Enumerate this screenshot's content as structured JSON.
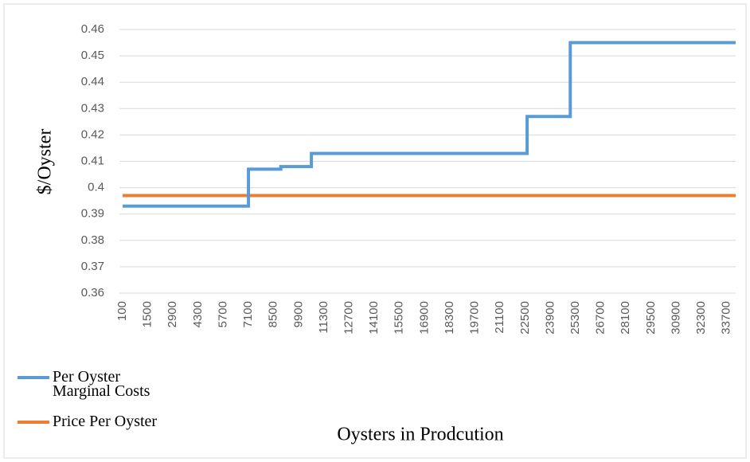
{
  "chart_data": {
    "type": "line",
    "x_label": "Oysters in Prodcution",
    "y_label": "$/Oyster",
    "series": [
      {
        "name": "Per Oyster Marginal Costs",
        "color": "#5b9bd5",
        "x": [
          100,
          7100,
          7100,
          8900,
          8900,
          10600,
          10600,
          22600,
          22600,
          25000,
          25000,
          34200
        ],
        "values": [
          0.393,
          0.393,
          0.407,
          0.407,
          0.408,
          0.408,
          0.413,
          0.413,
          0.427,
          0.427,
          0.455,
          0.455
        ]
      },
      {
        "name": "Price Per Oyster",
        "color": "#ed7d31",
        "x": [
          100,
          34200
        ],
        "values": [
          0.397,
          0.397
        ]
      }
    ],
    "xlim": [
      100,
      34200
    ],
    "xticks": [
      100,
      1500,
      2900,
      4300,
      5700,
      7100,
      8500,
      9900,
      11300,
      12700,
      14100,
      15500,
      16900,
      18300,
      19700,
      21100,
      22500,
      23900,
      25300,
      26700,
      28100,
      29500,
      30900,
      32300,
      33700
    ],
    "ylim": [
      0.36,
      0.46
    ],
    "yticks": [
      0.36,
      0.37,
      0.38,
      0.39,
      0.4,
      0.41,
      0.42,
      0.43,
      0.44,
      0.45,
      0.46
    ],
    "grid": true,
    "legend": "bottom-left"
  }
}
